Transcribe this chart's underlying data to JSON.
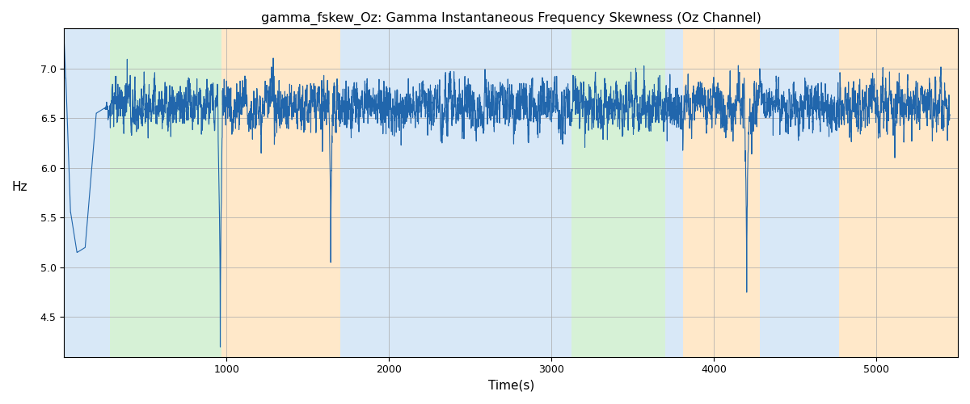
{
  "title": "gamma_fskew_Oz: Gamma Instantaneous Frequency Skewness (Oz Channel)",
  "xlabel": "Time(s)",
  "ylabel": "Hz",
  "xlim": [
    0,
    5500
  ],
  "ylim": [
    4.1,
    7.4
  ],
  "line_color": "#2166ac",
  "line_width": 0.8,
  "bg_color": "#ffffff",
  "grid_color": "#aaaaaa",
  "regions": [
    {
      "xmin": 0,
      "xmax": 280,
      "color": "#aaccee",
      "alpha": 0.45
    },
    {
      "xmin": 280,
      "xmax": 970,
      "color": "#99dd99",
      "alpha": 0.4
    },
    {
      "xmin": 970,
      "xmax": 1700,
      "color": "#ffcc88",
      "alpha": 0.45
    },
    {
      "xmin": 1700,
      "xmax": 3060,
      "color": "#aaccee",
      "alpha": 0.45
    },
    {
      "xmin": 3060,
      "xmax": 3120,
      "color": "#aaccee",
      "alpha": 0.45
    },
    {
      "xmin": 3120,
      "xmax": 3700,
      "color": "#99dd99",
      "alpha": 0.4
    },
    {
      "xmin": 3700,
      "xmax": 3810,
      "color": "#aaccee",
      "alpha": 0.45
    },
    {
      "xmin": 3810,
      "xmax": 4280,
      "color": "#ffcc88",
      "alpha": 0.45
    },
    {
      "xmin": 4280,
      "xmax": 4770,
      "color": "#aaccee",
      "alpha": 0.45
    },
    {
      "xmin": 4770,
      "xmax": 5500,
      "color": "#ffcc88",
      "alpha": 0.45
    }
  ],
  "yticks": [
    4.5,
    5.0,
    5.5,
    6.0,
    6.5,
    7.0
  ],
  "xticks": [
    1000,
    2000,
    3000,
    4000,
    5000
  ],
  "figsize": [
    12.0,
    5.0
  ],
  "dpi": 100
}
